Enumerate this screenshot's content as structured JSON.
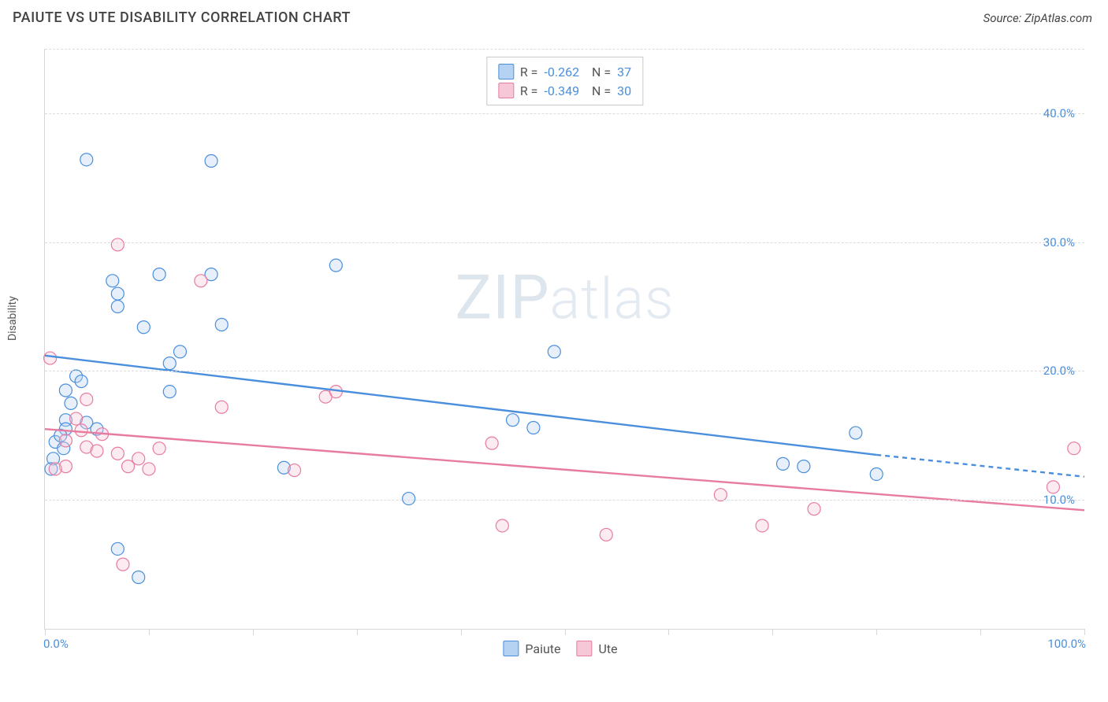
{
  "header": {
    "title": "PAIUTE VS UTE DISABILITY CORRELATION CHART",
    "source": "Source: ZipAtlas.com"
  },
  "watermark": {
    "prefix": "ZIP",
    "suffix": "atlas"
  },
  "chart": {
    "type": "scatter",
    "y_axis_label": "Disability",
    "background_color": "#ffffff",
    "grid_color": "#dcdcdc",
    "axis_color": "#d6d6d6",
    "tick_label_color": "#4a8fdd",
    "xlim": [
      0,
      100
    ],
    "ylim": [
      0,
      45
    ],
    "y_ticks": [
      {
        "value": 10,
        "label": "10.0%"
      },
      {
        "value": 20,
        "label": "20.0%"
      },
      {
        "value": 30,
        "label": "30.0%"
      },
      {
        "value": 40,
        "label": "40.0%"
      }
    ],
    "x_ticks_at": [
      0,
      10,
      20,
      30,
      40,
      50,
      60,
      70,
      80,
      90,
      100
    ],
    "x_labels": [
      {
        "value": 0,
        "label": "0.0%"
      },
      {
        "value": 100,
        "label": "100.0%"
      }
    ],
    "marker_radius": 8,
    "marker_stroke_width": 1.2,
    "marker_fill_opacity": 0.35,
    "line_width": 2.4,
    "series": [
      {
        "name": "Paiute",
        "color_stroke": "#4a8fdd",
        "color_fill": "#b6d2f2",
        "R": "-0.262",
        "N": "37",
        "regression": {
          "solid": [
            [
              0,
              21.2
            ],
            [
              80,
              13.5
            ]
          ],
          "dashed": [
            [
              80,
              13.5
            ],
            [
              100,
              11.8
            ]
          ]
        },
        "points": [
          [
            4,
            36.4
          ],
          [
            16,
            36.3
          ],
          [
            6.5,
            27
          ],
          [
            7,
            26
          ],
          [
            11,
            27.5
          ],
          [
            16,
            27.5
          ],
          [
            28,
            28.2
          ],
          [
            7,
            25
          ],
          [
            9.5,
            23.4
          ],
          [
            17,
            23.6
          ],
          [
            13,
            21.5
          ],
          [
            12,
            20.6
          ],
          [
            3,
            19.6
          ],
          [
            3.5,
            19.2
          ],
          [
            2,
            18.5
          ],
          [
            2.5,
            17.5
          ],
          [
            12,
            18.4
          ],
          [
            49,
            21.5
          ],
          [
            2,
            16.2
          ],
          [
            2,
            15.5
          ],
          [
            4,
            16
          ],
          [
            5,
            15.5
          ],
          [
            45,
            16.2
          ],
          [
            47,
            15.6
          ],
          [
            78,
            15.2
          ],
          [
            1,
            14.5
          ],
          [
            23,
            12.5
          ],
          [
            35,
            10.1
          ],
          [
            71,
            12.8
          ],
          [
            73,
            12.6
          ],
          [
            80,
            12.0
          ],
          [
            7,
            6.2
          ],
          [
            9,
            4.0
          ],
          [
            0.8,
            13.2
          ],
          [
            0.6,
            12.4
          ],
          [
            1.8,
            14.0
          ],
          [
            1.5,
            15.0
          ]
        ]
      },
      {
        "name": "Ute",
        "color_stroke": "#e87ba0",
        "color_fill": "#f6c7d6",
        "R": "-0.349",
        "N": "30",
        "regression": {
          "solid": [
            [
              0,
              15.5
            ],
            [
              100,
              9.2
            ]
          ]
        },
        "points": [
          [
            7,
            29.8
          ],
          [
            15,
            27.0
          ],
          [
            0.5,
            21
          ],
          [
            27,
            18
          ],
          [
            28,
            18.4
          ],
          [
            17,
            17.2
          ],
          [
            4,
            17.8
          ],
          [
            3,
            16.3
          ],
          [
            2,
            14.6
          ],
          [
            4,
            14.1
          ],
          [
            5,
            13.8
          ],
          [
            7,
            13.6
          ],
          [
            9,
            13.2
          ],
          [
            11,
            14.0
          ],
          [
            8,
            12.6
          ],
          [
            10,
            12.4
          ],
          [
            24,
            12.3
          ],
          [
            2,
            12.6
          ],
          [
            1,
            12.4
          ],
          [
            43,
            14.4
          ],
          [
            44,
            8.0
          ],
          [
            54,
            7.3
          ],
          [
            65,
            10.4
          ],
          [
            74,
            9.3
          ],
          [
            69,
            8.0
          ],
          [
            99,
            14.0
          ],
          [
            97,
            11.0
          ],
          [
            7.5,
            5.0
          ],
          [
            3.5,
            15.4
          ],
          [
            5.5,
            15.1
          ]
        ]
      }
    ],
    "legend_bottom": [
      {
        "label": "Paiute",
        "color_stroke": "#4a8fdd",
        "color_fill": "#b6d2f2"
      },
      {
        "label": "Ute",
        "color_stroke": "#e87ba0",
        "color_fill": "#f6c7d6"
      }
    ]
  }
}
